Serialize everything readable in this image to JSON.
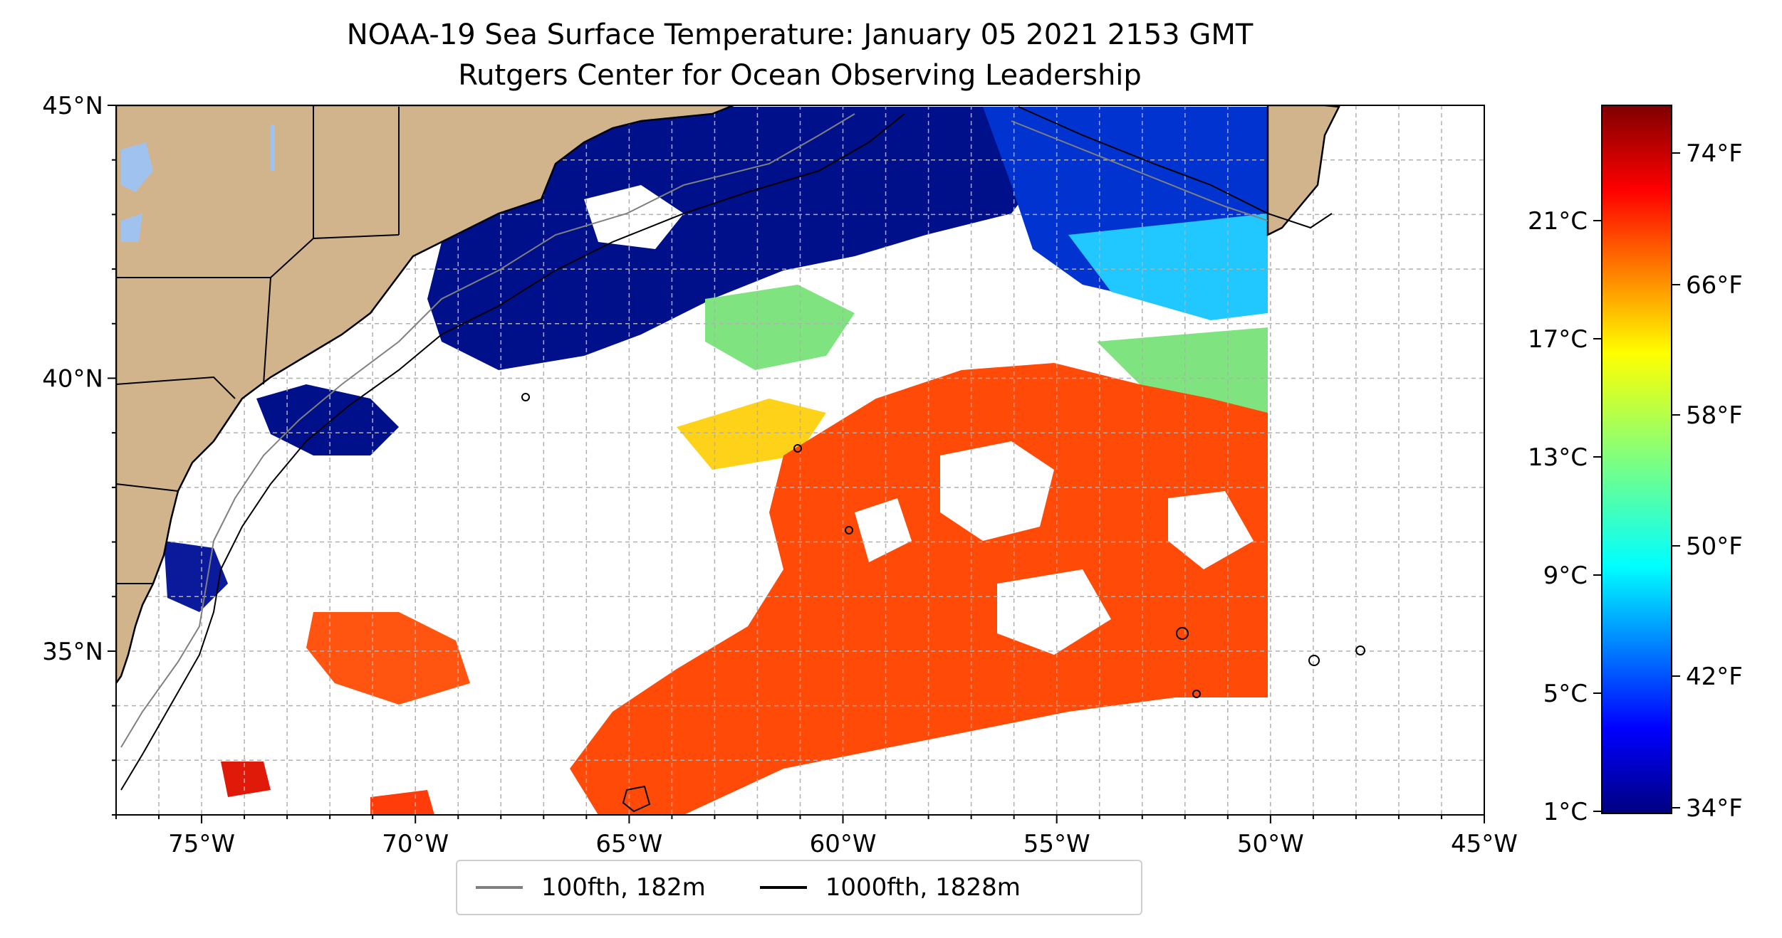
{
  "title": "NOAA-19 Sea Surface Temperature: January 05 2021 2153 GMT",
  "subtitle": "Rutgers Center for Ocean Observing Leadership",
  "axes": {
    "x_ticks": [
      "75°W",
      "70°W",
      "65°W",
      "60°W",
      "55°W",
      "50°W",
      "45°W"
    ],
    "y_ticks": [
      "45°N",
      "40°N",
      "35°N"
    ],
    "lon_range": [
      -77,
      -45
    ],
    "lat_range": [
      32,
      45
    ],
    "grid": true
  },
  "colors": {
    "land": "#d2b48c",
    "lakes": "#9fc3ee",
    "contour_100fth": "#808080",
    "contour_1000fth": "#000000",
    "grid": "#b0b0b0"
  },
  "colorbar": {
    "colormap": "jet",
    "celsius_ticks": [
      "21°C",
      "17°C",
      "13°C",
      "9°C",
      "5°C",
      "1°C"
    ],
    "fahrenheit_ticks": [
      "74°F",
      "66°F",
      "58°F",
      "50°F",
      "42°F",
      "34°F"
    ]
  },
  "legend": {
    "items": [
      {
        "label": "100fth, 182m",
        "color": "#808080"
      },
      {
        "label": "1000fth, 1828m",
        "color": "#000000"
      }
    ],
    "placement": "bottom-center"
  }
}
